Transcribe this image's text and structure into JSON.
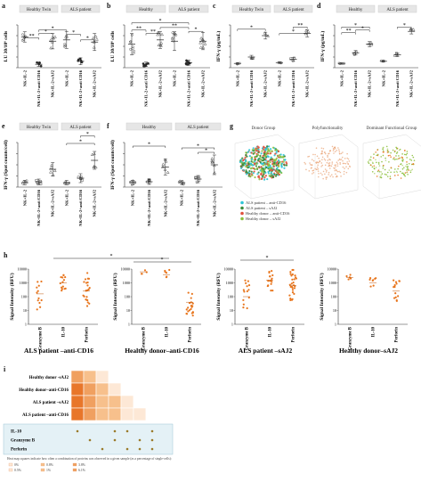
{
  "panels": {
    "a": {
      "letter": "a",
      "groups": [
        "Healthy Twin",
        "ALS patient"
      ],
      "ylabel": "LU 30/10⁶ cells",
      "xticks": [
        "NK+IL-2",
        "NK+IL-2+anti CD16",
        "NK+IL-2+sAJ2",
        "NK+IL-2",
        "NK+IL-2+anti CD16",
        "NK+IL-2+sAJ2"
      ],
      "sig": [
        "**",
        "*",
        "*",
        "*",
        "*"
      ]
    },
    "b": {
      "letter": "b",
      "groups": [
        "Healthy",
        "ALS patient"
      ],
      "ylabel": "LU 30/10⁶ cells",
      "xticks": [
        "NK+IL-2",
        "NK+IL-2+anti CD16",
        "NK+IL-2+sAJ2",
        "NK+IL-2",
        "NK+IL-2+anti CD16",
        "NK+IL-2+sAJ2"
      ],
      "sig": [
        "**",
        "**",
        "*",
        "**",
        "*"
      ]
    },
    "c": {
      "letter": "c",
      "groups": [
        "Healthy Twin",
        "ALS patient"
      ],
      "ylabel": "IFN-γ (pg/mL)",
      "xticks": [
        "NK+IL-2",
        "NK+IL-2+anti CD16",
        "NK+IL-2+sAJ2",
        "NK+IL-2",
        "NK+IL-2+anti CD16",
        "NK+IL-2+sAJ2"
      ],
      "sig": [
        "*",
        "*",
        "**"
      ]
    },
    "d": {
      "letter": "d",
      "groups": [
        "Healthy",
        "ALS patient"
      ],
      "ylabel": "IFN-γ (pg/mL)",
      "xticks": [
        "NK+IL-2",
        "NK+IL-2+anti CD16",
        "NK+IL-2+sAJ2",
        "NK+IL-2",
        "NK+IL-2+anti CD16",
        "NK+IL-2+sAJ2"
      ],
      "sig": [
        "*",
        "**",
        "*",
        "*"
      ]
    },
    "e": {
      "letter": "e",
      "groups": [
        "Healthy Twin",
        "ALS patient"
      ],
      "ylabel": "IFN-γ (Spot counts/cell)",
      "xticks": [
        "NK+IL-2",
        "NK+IL-2+anti CD16",
        "NK+IL-2+sAJ2",
        "NK+IL-2",
        "NK+IL-2+anti CD16",
        "NK+IL-2+sAJ2"
      ],
      "sig": [
        "*",
        "*"
      ]
    },
    "f": {
      "letter": "f",
      "groups": [
        "Healthy",
        "ALS patient"
      ],
      "ylabel": "IFN-γ (Spot counts/cell)",
      "xticks": [
        "NK+IL-2",
        "NK+IL-2+anti CD16",
        "NK+IL-2+sAJ2",
        "NK+IL-2",
        "NK+IL-2+anti CD16",
        "NK+IL-2+sAJ2"
      ],
      "sig": [
        "*",
        "*",
        "*"
      ]
    },
    "g": {
      "letter": "g",
      "titles": [
        "Donor Group",
        "Polyfunctionality",
        "Dominant Functional Group"
      ],
      "legend": [
        {
          "label": "ALS patient – anti-CD16",
          "color": "#2ec4d6"
        },
        {
          "label": "ALS patient – sAJ2",
          "color": "#3a8a3a"
        },
        {
          "label": "Healthy donor – anti-CD16",
          "color": "#e0503c"
        },
        {
          "label": "Healthy donor – sAJ2",
          "color": "#8bbf3c"
        }
      ]
    },
    "h": {
      "letter": "h",
      "ylabel": "Signal Intensity (RFU)",
      "yticks": [
        "10000",
        "1000",
        "100",
        "10",
        "1"
      ],
      "xticks": [
        "Granzyme B",
        "IL-10",
        "Perforin"
      ],
      "captions": [
        "ALS patient –anti-CD16",
        "Healthy donor–anti-CD16",
        "ALS patient –sAJ2",
        "Healthy donor–sAJ2"
      ],
      "sig": [
        "*",
        "*",
        "*"
      ]
    },
    "i": {
      "letter": "i",
      "rows": [
        "Healthy donor -sAJ2",
        "Healthy donor–anti-CD16",
        "ALS patient –sAJ2",
        "ALS patient –anti-CD16"
      ],
      "proteins": [
        "IL-10",
        "Granzyme B",
        "Perforin"
      ],
      "note": "Heat map squares indicate how often a combination of proteins was observed in a given sample (as a percentage of single-cells):",
      "scale": [
        "0%",
        "0.5%",
        "0.8%",
        "1%",
        "3.8%",
        "6.1%"
      ]
    }
  }
}
